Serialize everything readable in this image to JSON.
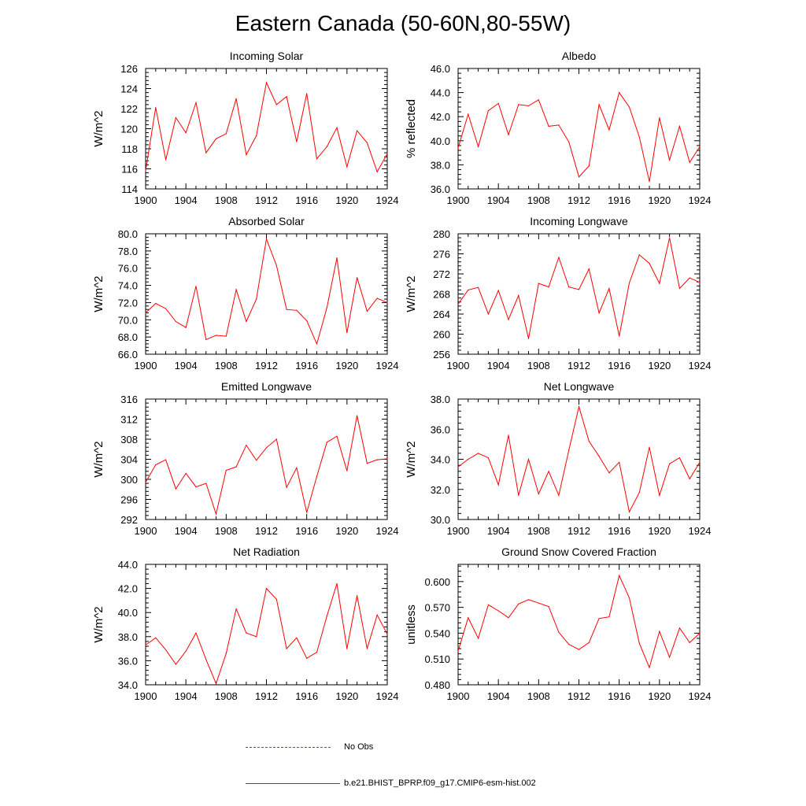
{
  "title": "Eastern Canada (50-60N,80-55W)",
  "line_color": "#ff0000",
  "legend": {
    "no_obs_label": "No Obs",
    "no_obs_color": "#4a4ab8",
    "model_label": "b.e21.BHIST_BPRP.f09_g17.CMIP6-esm-hist.002",
    "model_color": "#ff0000"
  },
  "chart_data": [
    {
      "type": "line",
      "title": "Incoming Solar",
      "ylabel": "W/m^2",
      "xlabel": "",
      "xlim": [
        1900,
        1924
      ],
      "ylim": [
        114,
        126
      ],
      "xticks": [
        1900,
        1904,
        1908,
        1912,
        1916,
        1920,
        1924
      ],
      "yticks": [
        "114",
        "116",
        "118",
        "120",
        "122",
        "124",
        "126"
      ],
      "x": [
        1900,
        1901,
        1902,
        1903,
        1904,
        1905,
        1906,
        1907,
        1908,
        1909,
        1910,
        1911,
        1912,
        1913,
        1914,
        1915,
        1916,
        1917,
        1918,
        1919,
        1920,
        1921,
        1922,
        1923,
        1924
      ],
      "values": [
        115.8,
        122.1,
        116.9,
        121.1,
        119.6,
        122.6,
        117.6,
        119.0,
        119.5,
        123.0,
        117.4,
        119.3,
        124.6,
        122.4,
        123.2,
        118.7,
        123.5,
        117.0,
        118.2,
        120.1,
        116.2,
        119.8,
        118.6,
        115.7,
        117.5
      ]
    },
    {
      "type": "line",
      "title": "Albedo",
      "ylabel": "% reflected",
      "xlabel": "",
      "xlim": [
        1900,
        1924
      ],
      "ylim": [
        36,
        46
      ],
      "xticks": [
        1900,
        1904,
        1908,
        1912,
        1916,
        1920,
        1924
      ],
      "yticks": [
        "36.0",
        "38.0",
        "40.0",
        "42.0",
        "44.0",
        "46.0"
      ],
      "x": [
        1900,
        1901,
        1902,
        1903,
        1904,
        1905,
        1906,
        1907,
        1908,
        1909,
        1910,
        1911,
        1912,
        1913,
        1914,
        1915,
        1916,
        1917,
        1918,
        1919,
        1920,
        1921,
        1922,
        1923,
        1924
      ],
      "values": [
        39.4,
        42.2,
        39.5,
        42.5,
        43.1,
        40.5,
        43.0,
        42.9,
        43.4,
        41.2,
        41.3,
        39.9,
        37.0,
        37.9,
        43.0,
        40.9,
        44.0,
        42.8,
        40.3,
        36.6,
        41.9,
        38.4,
        41.2,
        38.2,
        39.5
      ]
    },
    {
      "type": "line",
      "title": "Absorbed Solar",
      "ylabel": "W/m^2",
      "xlabel": "",
      "xlim": [
        1900,
        1924
      ],
      "ylim": [
        66,
        80
      ],
      "xticks": [
        1900,
        1904,
        1908,
        1912,
        1916,
        1920,
        1924
      ],
      "yticks": [
        "66.0",
        "68.0",
        "70.0",
        "72.0",
        "74.0",
        "76.0",
        "78.0",
        "80.0"
      ],
      "x": [
        1900,
        1901,
        1902,
        1903,
        1904,
        1905,
        1906,
        1907,
        1908,
        1909,
        1910,
        1911,
        1912,
        1913,
        1914,
        1915,
        1916,
        1917,
        1918,
        1919,
        1920,
        1921,
        1922,
        1923,
        1924
      ],
      "values": [
        70.8,
        71.9,
        71.3,
        69.8,
        69.1,
        73.9,
        67.7,
        68.2,
        68.1,
        73.5,
        69.8,
        72.4,
        79.4,
        76.3,
        71.2,
        71.1,
        69.9,
        67.2,
        71.4,
        77.2,
        68.5,
        74.9,
        71.0,
        72.5,
        72.0
      ]
    },
    {
      "type": "line",
      "title": "Incoming Longwave",
      "ylabel": "W/m^2",
      "xlabel": "",
      "xlim": [
        1900,
        1924
      ],
      "ylim": [
        256,
        280
      ],
      "xticks": [
        1900,
        1904,
        1908,
        1912,
        1916,
        1920,
        1924
      ],
      "yticks": [
        "256",
        "260",
        "264",
        "268",
        "272",
        "276",
        "280"
      ],
      "x": [
        1900,
        1901,
        1902,
        1903,
        1904,
        1905,
        1906,
        1907,
        1908,
        1909,
        1910,
        1911,
        1912,
        1913,
        1914,
        1915,
        1916,
        1917,
        1918,
        1919,
        1920,
        1921,
        1922,
        1923,
        1924
      ],
      "values": [
        266.0,
        268.8,
        269.3,
        264.0,
        268.7,
        262.9,
        267.7,
        259.1,
        270.1,
        269.4,
        275.3,
        269.4,
        268.9,
        273.0,
        264.2,
        269.1,
        259.6,
        270.2,
        275.8,
        274.1,
        270.1,
        279.2,
        269.1,
        271.2,
        270.3
      ]
    },
    {
      "type": "line",
      "title": "Emitted Longwave",
      "ylabel": "W/m^2",
      "xlabel": "",
      "xlim": [
        1900,
        1924
      ],
      "ylim": [
        292,
        316
      ],
      "xticks": [
        1900,
        1904,
        1908,
        1912,
        1916,
        1920,
        1924
      ],
      "yticks": [
        "292",
        "296",
        "300",
        "304",
        "308",
        "312",
        "316"
      ],
      "x": [
        1900,
        1901,
        1902,
        1903,
        1904,
        1905,
        1906,
        1907,
        1908,
        1909,
        1910,
        1911,
        1912,
        1913,
        1914,
        1915,
        1916,
        1917,
        1918,
        1919,
        1920,
        1921,
        1922,
        1923,
        1924
      ],
      "values": [
        299.4,
        302.9,
        303.9,
        298.1,
        301.2,
        298.5,
        299.2,
        293.1,
        301.8,
        302.5,
        306.8,
        303.8,
        306.3,
        308.0,
        298.4,
        302.3,
        293.4,
        300.6,
        307.4,
        308.6,
        301.7,
        312.7,
        303.2,
        303.9,
        304.1
      ]
    },
    {
      "type": "line",
      "title": "Net Longwave",
      "ylabel": "W/m^2",
      "xlabel": "",
      "xlim": [
        1900,
        1924
      ],
      "ylim": [
        30,
        38
      ],
      "xticks": [
        1900,
        1904,
        1908,
        1912,
        1916,
        1920,
        1924
      ],
      "yticks": [
        "30.0",
        "32.0",
        "34.0",
        "36.0",
        "38.0"
      ],
      "x": [
        1900,
        1901,
        1902,
        1903,
        1904,
        1905,
        1906,
        1907,
        1908,
        1909,
        1910,
        1911,
        1912,
        1913,
        1914,
        1915,
        1916,
        1917,
        1918,
        1919,
        1920,
        1921,
        1922,
        1923,
        1924
      ],
      "values": [
        33.5,
        34.0,
        34.4,
        34.1,
        32.3,
        35.6,
        31.6,
        34.0,
        31.7,
        33.2,
        31.6,
        34.6,
        37.5,
        35.2,
        34.2,
        33.1,
        33.8,
        30.5,
        31.8,
        34.8,
        31.6,
        33.7,
        34.1,
        32.7,
        33.8
      ]
    },
    {
      "type": "line",
      "title": "Net Radiation",
      "ylabel": "W/m^2",
      "xlabel": "",
      "xlim": [
        1900,
        1924
      ],
      "ylim": [
        34,
        44
      ],
      "xticks": [
        1900,
        1904,
        1908,
        1912,
        1916,
        1920,
        1924
      ],
      "yticks": [
        "34.0",
        "36.0",
        "38.0",
        "40.0",
        "42.0",
        "44.0"
      ],
      "x": [
        1900,
        1901,
        1902,
        1903,
        1904,
        1905,
        1906,
        1907,
        1908,
        1909,
        1910,
        1911,
        1912,
        1913,
        1914,
        1915,
        1916,
        1917,
        1918,
        1919,
        1920,
        1921,
        1922,
        1923,
        1924
      ],
      "values": [
        37.3,
        37.9,
        36.9,
        35.7,
        36.8,
        38.3,
        36.1,
        34.1,
        36.6,
        40.3,
        38.3,
        38.0,
        42.0,
        41.1,
        37.0,
        37.9,
        36.2,
        36.7,
        39.7,
        42.4,
        37.0,
        41.4,
        37.0,
        39.8,
        38.2
      ]
    },
    {
      "type": "line",
      "title": "Ground Snow Covered Fraction",
      "ylabel": "unitless",
      "xlabel": "",
      "xlim": [
        1900,
        1924
      ],
      "ylim": [
        0.48,
        0.62
      ],
      "xticks": [
        1900,
        1904,
        1908,
        1912,
        1916,
        1920,
        1924
      ],
      "yticks": [
        "0.480",
        "0.510",
        "0.540",
        "0.570",
        "0.600"
      ],
      "yticks_values": [
        0.48,
        0.51,
        0.54,
        0.57,
        0.6
      ],
      "x": [
        1900,
        1901,
        1902,
        1903,
        1904,
        1905,
        1906,
        1907,
        1908,
        1909,
        1910,
        1911,
        1912,
        1913,
        1914,
        1915,
        1916,
        1917,
        1918,
        1919,
        1920,
        1921,
        1922,
        1923,
        1924
      ],
      "values": [
        0.519,
        0.558,
        0.534,
        0.573,
        0.566,
        0.558,
        0.574,
        0.579,
        0.575,
        0.571,
        0.541,
        0.527,
        0.521,
        0.529,
        0.557,
        0.559,
        0.607,
        0.581,
        0.528,
        0.5,
        0.542,
        0.512,
        0.546,
        0.529,
        0.54
      ]
    }
  ]
}
